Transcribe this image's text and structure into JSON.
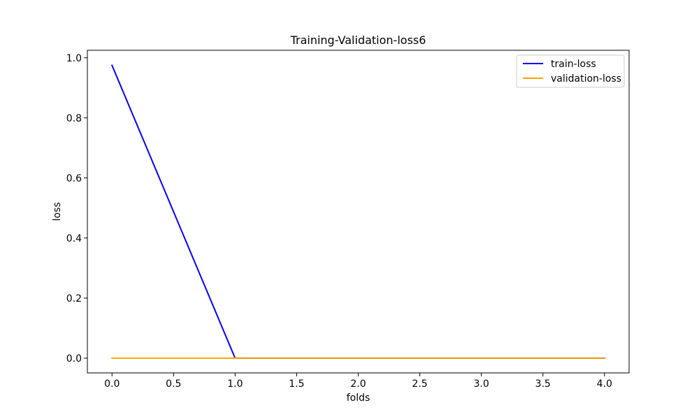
{
  "chart_data": {
    "type": "line",
    "title": "Training-Validation-loss6",
    "xlabel": "folds",
    "ylabel": "loss",
    "xlim": [
      -0.2,
      4.2
    ],
    "ylim": [
      -0.049,
      1.025
    ],
    "xticks": [
      0.0,
      0.5,
      1.0,
      1.5,
      2.0,
      2.5,
      3.0,
      3.5,
      4.0
    ],
    "xtick_labels": [
      "0.0",
      "0.5",
      "1.0",
      "1.5",
      "2.0",
      "2.5",
      "3.0",
      "3.5",
      "4.0"
    ],
    "yticks": [
      0.0,
      0.2,
      0.4,
      0.6,
      0.8,
      1.0
    ],
    "ytick_labels": [
      "0.0",
      "0.2",
      "0.4",
      "0.6",
      "0.8",
      "1.0"
    ],
    "grid": false,
    "legend_position": "top-right",
    "x": [
      0,
      1,
      2,
      3,
      4
    ],
    "series": [
      {
        "name": "train-loss",
        "color": "#0000ff",
        "values": [
          0.975,
          0.0,
          0.0,
          0.0,
          0.0
        ]
      },
      {
        "name": "validation-loss",
        "color": "#ffa500",
        "values": [
          0.0,
          0.0,
          0.0,
          0.0,
          0.0
        ]
      }
    ]
  }
}
